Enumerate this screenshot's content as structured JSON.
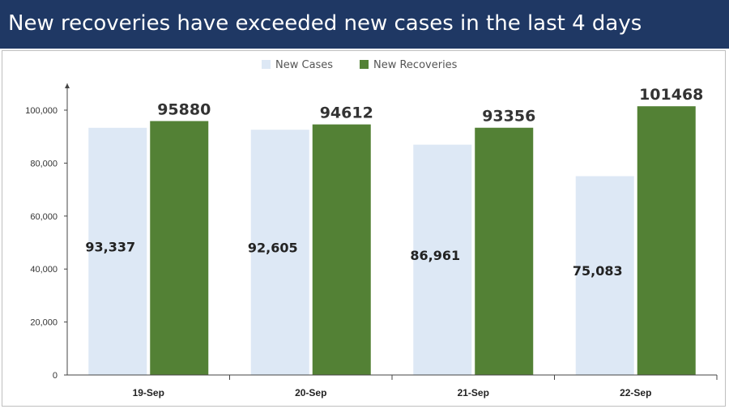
{
  "title": "New recoveries have exceeded new cases in the last 4 days",
  "colors": {
    "title_bg": "#1f3864",
    "new_cases": "#dde8f5",
    "new_recoveries": "#538135"
  },
  "chart_data": {
    "type": "bar",
    "categories": [
      "19-Sep",
      "20-Sep",
      "21-Sep",
      "22-Sep"
    ],
    "series": [
      {
        "name": "New Cases",
        "values": [
          93337,
          92605,
          86961,
          75083
        ],
        "labels": [
          "93,337",
          "92,605",
          "86,961",
          "75,083"
        ]
      },
      {
        "name": "New Recoveries",
        "values": [
          95880,
          94612,
          93356,
          101468
        ],
        "labels": [
          "95880",
          "94612",
          "93356",
          "101468"
        ]
      }
    ],
    "yticks": [
      "0",
      "20,000",
      "40,000",
      "60,000",
      "80,000",
      "100,000"
    ],
    "ylim": [
      0,
      110000
    ],
    "legend": "top-center",
    "grid": false
  }
}
